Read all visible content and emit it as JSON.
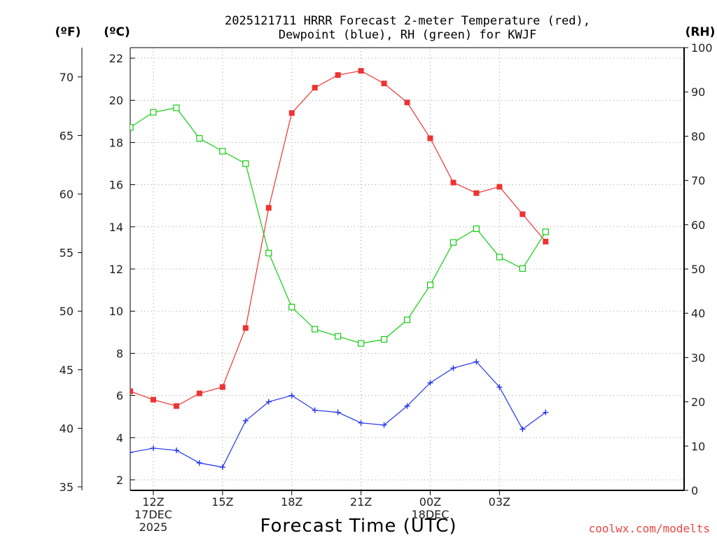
{
  "chart_data": {
    "type": "line",
    "title": [
      "2025121711 HRRR Forecast 2-meter Temperature (red),",
      "Dewpoint (blue), RH (green) for KWJF"
    ],
    "xlabel": "Forecast Time (UTC)",
    "units": {
      "fahrenheit": "(ºF)",
      "celsius": "(ºC)",
      "rh": "(RH)"
    },
    "watermark": "coolwx.com/modelts",
    "grid": true,
    "x_range": [
      11,
      35
    ],
    "ylim_celsius": [
      1.5,
      22.5
    ],
    "ylim_rh": [
      0,
      100
    ],
    "x_ticks": [
      {
        "x": 12,
        "lines": [
          "12Z",
          "17DEC",
          "2025"
        ]
      },
      {
        "x": 15,
        "lines": [
          "15Z"
        ]
      },
      {
        "x": 18,
        "lines": [
          "18Z"
        ]
      },
      {
        "x": 21,
        "lines": [
          "21Z"
        ]
      },
      {
        "x": 24,
        "lines": [
          "00Z",
          "18DEC"
        ]
      },
      {
        "x": 27,
        "lines": [
          "03Z"
        ]
      }
    ],
    "y_ticks_celsius": [
      2,
      4,
      6,
      8,
      10,
      12,
      14,
      16,
      18,
      20,
      22
    ],
    "y_ticks_fahrenheit": [
      35,
      40,
      45,
      50,
      55,
      60,
      65,
      70
    ],
    "y_ticks_rh": [
      0,
      10,
      20,
      30,
      40,
      50,
      60,
      70,
      80,
      90,
      100
    ],
    "x": [
      11,
      12,
      13,
      14,
      15,
      16,
      17,
      18,
      19,
      20,
      21,
      22,
      23,
      24,
      25,
      26,
      27,
      28,
      29
    ],
    "series": [
      {
        "name": "2-meter Temperature",
        "axis": "celsius",
        "color": "#ee3333",
        "marker": "filled-square",
        "values": [
          6.2,
          5.8,
          5.5,
          6.1,
          6.4,
          9.2,
          14.9,
          19.4,
          20.6,
          21.2,
          21.4,
          20.8,
          19.9,
          18.2,
          16.1,
          15.6,
          15.9,
          14.6,
          13.3
        ]
      },
      {
        "name": "Dewpoint",
        "axis": "celsius",
        "color": "#2233ee",
        "marker": "plus",
        "values": [
          3.3,
          3.5,
          3.4,
          2.8,
          2.6,
          4.8,
          5.7,
          6.0,
          5.3,
          5.2,
          4.7,
          4.6,
          5.5,
          6.6,
          7.3,
          7.6,
          6.4,
          4.4,
          5.2
        ]
      },
      {
        "name": "RH",
        "axis": "rh",
        "color": "#11cc11",
        "marker": "open-square",
        "values": [
          82.0,
          85.4,
          86.4,
          79.5,
          76.6,
          73.8,
          53.6,
          41.4,
          36.4,
          34.8,
          33.2,
          34.1,
          38.5,
          46.4,
          56.0,
          59.1,
          52.7,
          50.1,
          58.4
        ]
      }
    ]
  }
}
